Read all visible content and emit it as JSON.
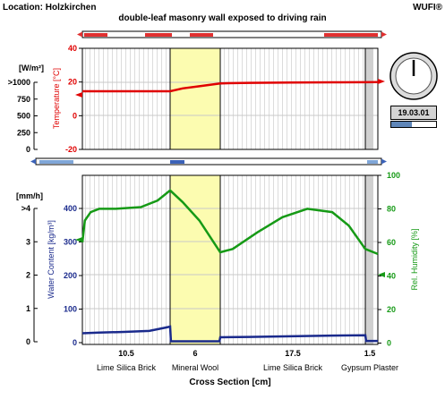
{
  "header": {
    "location": "Location: Holzkirchen",
    "title": "double-leaf masonry wall exposed to driving rain",
    "brand": "WUFI®"
  },
  "status": {
    "date": "19.03.01",
    "progress": 0.45
  },
  "top_plot": {
    "left_unit": "[W/m²]",
    "left_ticks": [
      ">1000",
      "750",
      "500",
      "250",
      "0"
    ],
    "temp_label": "Temperature [°C]",
    "temp_ticks": [
      "40",
      "20",
      "0",
      "-20"
    ],
    "temp_color": "#e00000"
  },
  "bottom_plot": {
    "left_unit": "[mm/h]",
    "left_ticks": [
      ">4",
      "3",
      "2",
      "1",
      "0"
    ],
    "wc_label": "Water Content [kg/m³]",
    "wc_ticks": [
      "400",
      "300",
      "200",
      "100",
      "0"
    ],
    "rh_label": "Rel. Humidity [%]",
    "rh_ticks": [
      "100",
      "80",
      "60",
      "40",
      "20",
      "0"
    ],
    "wc_color": "#1a2a8c",
    "rh_color": "#169a16"
  },
  "layers": {
    "thickness": [
      "10.5",
      "6",
      "17.5",
      "1.5"
    ],
    "names": [
      "Lime Silica Brick",
      "Mineral Wool",
      "Lime Silica Brick",
      "Gypsum Plaster"
    ]
  },
  "xlabel": "Cross Section [cm]",
  "chart_data": [
    {
      "type": "line",
      "title": "",
      "xlabel": "Cross Section [cm]",
      "ylabel": "Temperature [°C]",
      "ylim": [
        -20,
        40
      ],
      "x": [
        0,
        10.5,
        12.0,
        14.0,
        16.5,
        20.0,
        25.0,
        30.0,
        34.0,
        35.5
      ],
      "series": [
        {
          "values": [
            14.5,
            14.5,
            16.2,
            17.5,
            19.2,
            19.5,
            19.7,
            19.8,
            19.9,
            20.0
          ]
        }
      ]
    },
    {
      "type": "line",
      "title": "",
      "xlabel": "Cross Section [cm]",
      "ylabel": "Water Content [kg/m³]",
      "ylim": [
        0,
        400
      ],
      "x": [
        0,
        2.0,
        5.0,
        8.0,
        10.0,
        10.5,
        10.6,
        16.4,
        16.5,
        20.0,
        25.0,
        30.0,
        34.0,
        34.1,
        35.5
      ],
      "series": [
        {
          "values": [
            28,
            30,
            32,
            35,
            45,
            48,
            4,
            4,
            16,
            17,
            19,
            21,
            22,
            5,
            5
          ]
        }
      ]
    },
    {
      "type": "line",
      "title": "",
      "xlabel": "Cross Section [cm]",
      "ylabel": "Rel. Humidity [%]",
      "ylim": [
        0,
        100
      ],
      "x": [
        0,
        0.3,
        1.0,
        2.0,
        4.0,
        7.0,
        9.0,
        10.0,
        10.5,
        12.0,
        14.0,
        16.5,
        18.0,
        21.0,
        24.0,
        27.0,
        30.0,
        32.0,
        34.0,
        35.5
      ],
      "series": [
        {
          "values": [
            60,
            73,
            78,
            80,
            80,
            81,
            85,
            89,
            91,
            84,
            73,
            54,
            56,
            66,
            75,
            80,
            78,
            70,
            56,
            53
          ]
        }
      ]
    }
  ]
}
